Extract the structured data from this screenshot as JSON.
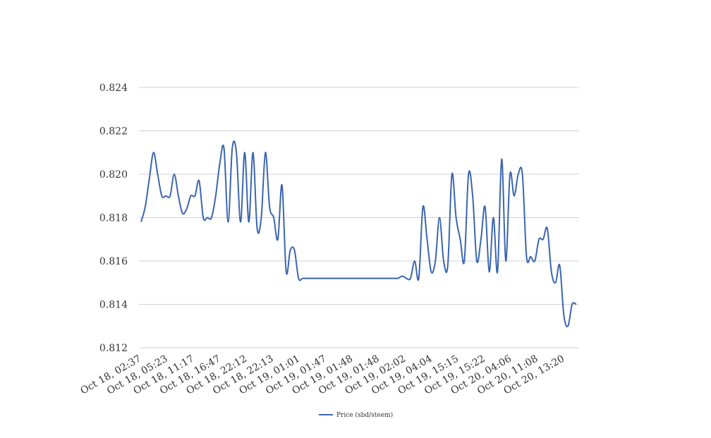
{
  "chart_data": {
    "type": "line",
    "title": "",
    "xlabel": "",
    "ylabel": "",
    "ylim": [
      0.812,
      0.824
    ],
    "yticks": [
      "0.812",
      "0.814",
      "0.816",
      "0.818",
      "0.820",
      "0.822",
      "0.824"
    ],
    "xtick_labels": [
      "Oct 18, 02:37",
      "Oct 18, 05:23",
      "Oct 18, 11:17",
      "Oct 18, 16:47",
      "Oct 18, 22:12",
      "Oct 18, 22:13",
      "Oct 19, 01:01",
      "Oct 19, 01:47",
      "Oct 19, 01:48",
      "Oct 19, 01:48",
      "Oct 19, 02:02",
      "Oct 19, 04:04",
      "Oct 19, 15:15",
      "Oct 19, 15:22",
      "Oct 20, 04:06",
      "Oct 20, 11:08",
      "Oct 20, 13:20"
    ],
    "grid": true,
    "legend_position": "bottom",
    "series": [
      {
        "name": "Price (sbd/steem)",
        "color": "#3b65b0",
        "values": [
          0.8178,
          0.8185,
          0.8198,
          0.821,
          0.82,
          0.819,
          0.819,
          0.819,
          0.82,
          0.819,
          0.8182,
          0.8184,
          0.819,
          0.819,
          0.8197,
          0.818,
          0.818,
          0.818,
          0.819,
          0.8205,
          0.8212,
          0.8178,
          0.8212,
          0.821,
          0.8178,
          0.821,
          0.8178,
          0.821,
          0.8175,
          0.818,
          0.821,
          0.8185,
          0.818,
          0.817,
          0.8195,
          0.8155,
          0.8165,
          0.8165,
          0.8152,
          0.8152,
          0.8152,
          0.8152,
          0.8152,
          0.8152,
          0.8152,
          0.8152,
          0.8152,
          0.8152,
          0.8152,
          0.8152,
          0.8152,
          0.8152,
          0.8152,
          0.8152,
          0.8152,
          0.8152,
          0.8152,
          0.8152,
          0.8152,
          0.8152,
          0.8152,
          0.8152,
          0.8152,
          0.8153,
          0.8152,
          0.8152,
          0.816,
          0.8152,
          0.8185,
          0.817,
          0.8155,
          0.816,
          0.818,
          0.816,
          0.8158,
          0.82,
          0.818,
          0.817,
          0.816,
          0.82,
          0.819,
          0.816,
          0.817,
          0.8185,
          0.8155,
          0.818,
          0.8155,
          0.8207,
          0.816,
          0.82,
          0.819,
          0.82,
          0.82,
          0.8162,
          0.8162,
          0.816,
          0.817,
          0.817,
          0.8175,
          0.8155,
          0.815,
          0.8158,
          0.8135,
          0.813,
          0.814,
          0.814
        ]
      }
    ]
  }
}
